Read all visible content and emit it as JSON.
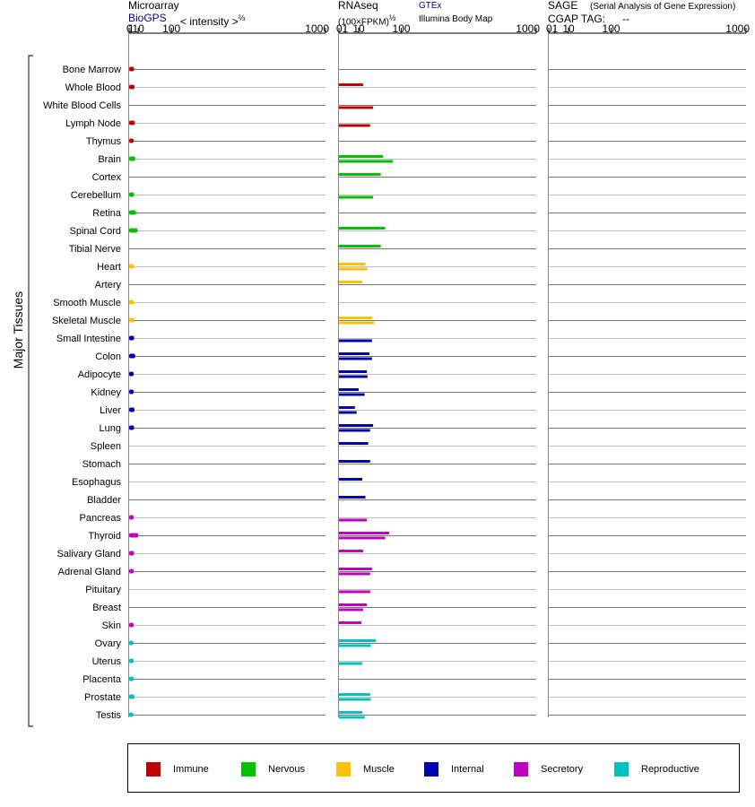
{
  "headers": {
    "microarray": {
      "title": "Microarray",
      "source": "BioGPS",
      "scale": "< intensity >",
      "scale_exp": "⅔"
    },
    "rnaseq": {
      "title": "RNAseq",
      "scale": "(100×FPKM)",
      "scale_exp": "½",
      "source1": "GTEx",
      "source2": "Illumina Body Map"
    },
    "sage": {
      "title": "SAGE",
      "subtitle": "(Serial Analysis of Gene Expression)",
      "tag_label": "CGAP TAG:",
      "tag_value": "--"
    }
  },
  "y_group_label": "Major Tissues",
  "legend": [
    {
      "label": "Immune",
      "color": "#c00000"
    },
    {
      "label": "Nervous",
      "color": "#00c000"
    },
    {
      "label": "Muscle",
      "color": "#ffc000"
    },
    {
      "label": "Internal",
      "color": "#0000b0"
    },
    {
      "label": "Secretory",
      "color": "#c000c0"
    },
    {
      "label": "Reproductive",
      "color": "#00c0c0"
    }
  ],
  "chart_data": {
    "type": "bar",
    "orientation": "horizontal",
    "x_scale": "log",
    "ticks": [
      0,
      1,
      10,
      100,
      1000
    ],
    "categories": [
      "Bone Marrow",
      "Whole Blood",
      "White Blood Cells",
      "Lymph Node",
      "Thymus",
      "Brain",
      "Cortex",
      "Cerebellum",
      "Retina",
      "Spinal Cord",
      "Tibial Nerve",
      "Heart",
      "Artery",
      "Smooth Muscle",
      "Skeletal Muscle",
      "Small Intestine",
      "Colon",
      "Adipocyte",
      "Kidney",
      "Liver",
      "Lung",
      "Spleen",
      "Stomach",
      "Esophagus",
      "Bladder",
      "Pancreas",
      "Thyroid",
      "Salivary Gland",
      "Adrenal Gland",
      "Pituitary",
      "Breast",
      "Skin",
      "Ovary",
      "Uterus",
      "Placenta",
      "Prostate",
      "Testis"
    ],
    "groups": [
      "Immune",
      "Immune",
      "Immune",
      "Immune",
      "Immune",
      "Nervous",
      "Nervous",
      "Nervous",
      "Nervous",
      "Nervous",
      "Nervous",
      "Muscle",
      "Muscle",
      "Muscle",
      "Muscle",
      "Internal",
      "Internal",
      "Internal",
      "Internal",
      "Internal",
      "Internal",
      "Internal",
      "Internal",
      "Internal",
      "Internal",
      "Secretory",
      "Secretory",
      "Secretory",
      "Secretory",
      "Secretory",
      "Secretory",
      "Secretory",
      "Reproductive",
      "Reproductive",
      "Reproductive",
      "Reproductive",
      "Reproductive"
    ],
    "microarray": [
      4,
      4.5,
      null,
      5,
      3.5,
      5.5,
      null,
      4,
      6.5,
      9,
      null,
      4,
      null,
      4,
      4.5,
      4,
      5.5,
      3.5,
      3.5,
      4.5,
      4,
      null,
      null,
      null,
      null,
      3.5,
      10,
      4,
      3.5,
      null,
      null,
      3.5,
      3.2,
      3.5,
      3.5,
      4.5,
      3
    ],
    "gtex": [
      null,
      15,
      null,
      null,
      null,
      50,
      45,
      null,
      null,
      55,
      45,
      18,
      14,
      null,
      28,
      null,
      24,
      20,
      10,
      6.5,
      30,
      22,
      25,
      14,
      18,
      null,
      65,
      15,
      28,
      null,
      20,
      13,
      35,
      null,
      null,
      25,
      14
    ],
    "illumina": [
      null,
      null,
      30,
      25,
      null,
      75,
      null,
      30,
      null,
      null,
      null,
      21,
      null,
      null,
      32,
      28,
      28,
      21,
      17,
      8,
      25,
      null,
      null,
      null,
      null,
      20,
      55,
      null,
      25,
      25,
      15,
      null,
      26,
      14,
      null,
      26,
      17
    ]
  }
}
